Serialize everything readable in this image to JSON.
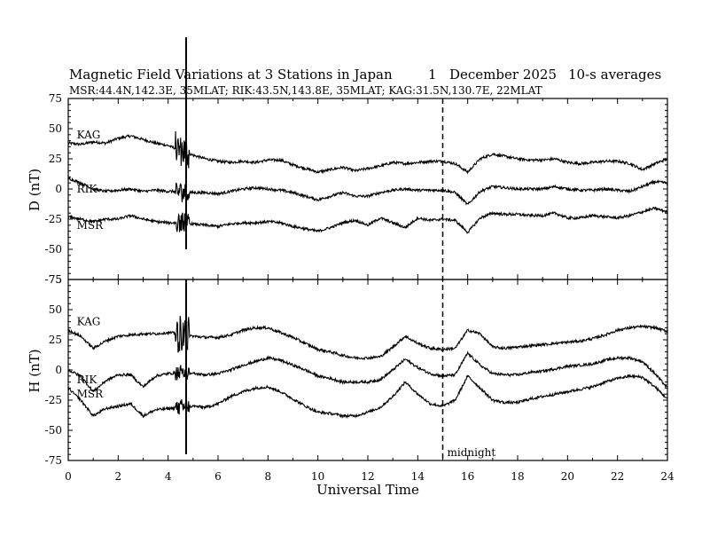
{
  "chart_data": {
    "type": "line",
    "title": {
      "main": "Magnetic Field Variations at 3 Stations in Japan",
      "day": "1",
      "month_year": "December 2025",
      "averaging": "10-s averages"
    },
    "subtitle": "MSR:44.4N,142.3E, 35MLAT;  RIK:43.5N,143.8E, 35MLAT;  KAG:31.5N,130.7E, 22MLAT",
    "xlabel": "Universal Time",
    "xlim": [
      0,
      24
    ],
    "x_ticks": [
      "0",
      "2",
      "4",
      "6",
      "8",
      "10",
      "12",
      "14",
      "16",
      "18",
      "20",
      "22",
      "24"
    ],
    "annotation": {
      "text": "midnight",
      "x": 15
    },
    "panels": [
      {
        "ylabel": "D (nT)",
        "ylim": [
          -75,
          75
        ],
        "y_ticks": [
          "75",
          "50",
          "25",
          "0",
          "-25",
          "-50",
          "-75"
        ],
        "series": [
          {
            "name": "KAG",
            "label_at": [
              0.2,
              45
            ],
            "x": [
              0,
              0.5,
              1,
              1.5,
              2,
              2.5,
              3,
              3.5,
              4,
              4.5,
              5,
              5.5,
              6,
              6.5,
              7,
              7.5,
              8,
              8.5,
              9,
              9.5,
              10,
              10.5,
              11,
              11.5,
              12,
              12.5,
              13,
              13.5,
              14,
              14.5,
              15,
              15.5,
              16,
              16.5,
              17,
              17.5,
              18,
              18.5,
              19,
              19.5,
              20,
              20.5,
              21,
              21.5,
              22,
              22.5,
              23,
              23.5,
              24
            ],
            "values": [
              38,
              37,
              39,
              38,
              42,
              44,
              41,
              38,
              36,
              32,
              28,
              25,
              23,
              22,
              23,
              22,
              24,
              24,
              20,
              17,
              14,
              16,
              18,
              15,
              17,
              19,
              22,
              21,
              22,
              23,
              23,
              21,
              14,
              25,
              29,
              27,
              25,
              24,
              24,
              25,
              22,
              21,
              22,
              23,
              23,
              21,
              16,
              21,
              25
            ]
          },
          {
            "name": "RIK",
            "label_at": [
              0.2,
              0
            ],
            "x": [
              0,
              0.5,
              1,
              1.5,
              2,
              2.5,
              3,
              3.5,
              4,
              4.5,
              5,
              5.5,
              6,
              6.5,
              7,
              7.5,
              8,
              8.5,
              9,
              9.5,
              10,
              10.5,
              11,
              11.5,
              12,
              12.5,
              13,
              13.5,
              14,
              14.5,
              15,
              15.5,
              16,
              16.5,
              17,
              17.5,
              18,
              18.5,
              19,
              19.5,
              20,
              20.5,
              21,
              21.5,
              22,
              22.5,
              23,
              23.5,
              24
            ],
            "values": [
              9,
              5,
              0,
              -2,
              -1,
              0,
              -2,
              -1,
              -2,
              -2,
              -3,
              -3,
              -4,
              -2,
              0,
              1,
              0,
              -1,
              -3,
              -6,
              -9,
              -6,
              -3,
              -6,
              -6,
              -3,
              -1,
              0,
              -1,
              -1,
              -1,
              -3,
              -13,
              -2,
              2,
              1,
              0,
              0,
              0,
              2,
              0,
              -1,
              -1,
              0,
              -1,
              -2,
              2,
              6,
              5
            ]
          },
          {
            "name": "MSR",
            "label_at": [
              0.2,
              -30
            ],
            "x": [
              0,
              0.5,
              1,
              1.5,
              2,
              2.5,
              3,
              3.5,
              4,
              4.5,
              5,
              5.5,
              6,
              6.5,
              7,
              7.5,
              8,
              8.5,
              9,
              9.5,
              10,
              10.5,
              11,
              11.5,
              12,
              12.5,
              13,
              13.5,
              14,
              14.5,
              15,
              15.5,
              16,
              16.5,
              17,
              17.5,
              18,
              18.5,
              19,
              19.5,
              20,
              20.5,
              21,
              21.5,
              22,
              22.5,
              23,
              23.5,
              24
            ],
            "values": [
              -23,
              -25,
              -27,
              -25,
              -25,
              -22,
              -25,
              -27,
              -28,
              -28,
              -29,
              -30,
              -31,
              -29,
              -28,
              -28,
              -27,
              -28,
              -31,
              -33,
              -35,
              -32,
              -28,
              -26,
              -30,
              -24,
              -28,
              -32,
              -24,
              -26,
              -25,
              -26,
              -36,
              -24,
              -20,
              -21,
              -21,
              -22,
              -22,
              -20,
              -24,
              -24,
              -22,
              -23,
              -24,
              -22,
              -19,
              -16,
              -19
            ]
          }
        ]
      },
      {
        "ylabel": "H (nT)",
        "ylim": [
          -75,
          75
        ],
        "y_ticks": [
          "75",
          "50",
          "25",
          "0",
          "-25",
          "-50",
          "-75"
        ],
        "series": [
          {
            "name": "KAG",
            "label_at": [
              0.2,
              40
            ],
            "x": [
              0,
              0.5,
              1,
              1.5,
              2,
              2.5,
              3,
              3.5,
              4,
              4.5,
              5,
              5.5,
              6,
              6.5,
              7,
              7.5,
              8,
              8.5,
              9,
              9.5,
              10,
              10.5,
              11,
              11.5,
              12,
              12.5,
              13,
              13.5,
              14,
              14.5,
              15,
              15.5,
              16,
              16.5,
              17,
              17.5,
              18,
              18.5,
              19,
              19.5,
              20,
              20.5,
              21,
              21.5,
              22,
              22.5,
              23,
              23.5,
              24
            ],
            "values": [
              33,
              28,
              18,
              24,
              28,
              29,
              30,
              30,
              31,
              30,
              28,
              27,
              27,
              29,
              33,
              35,
              35,
              31,
              27,
              22,
              17,
              15,
              12,
              10,
              10,
              11,
              19,
              28,
              22,
              18,
              17,
              18,
              33,
              30,
              19,
              18,
              19,
              20,
              21,
              22,
              23,
              24,
              26,
              29,
              33,
              35,
              36,
              35,
              32
            ]
          },
          {
            "name": "RIK",
            "label_at": [
              0.2,
              -8
            ],
            "x": [
              0,
              0.5,
              1,
              1.5,
              2,
              2.5,
              3,
              3.5,
              4,
              4.5,
              5,
              5.5,
              6,
              6.5,
              7,
              7.5,
              8,
              8.5,
              9,
              9.5,
              10,
              10.5,
              11,
              11.5,
              12,
              12.5,
              13,
              13.5,
              14,
              14.5,
              15,
              15.5,
              16,
              16.5,
              17,
              17.5,
              18,
              18.5,
              19,
              19.5,
              20,
              20.5,
              21,
              21.5,
              22,
              22.5,
              23,
              23.5,
              24
            ],
            "values": [
              0,
              -5,
              -18,
              -9,
              -4,
              -4,
              -14,
              -5,
              -3,
              -2,
              -3,
              -4,
              -3,
              0,
              4,
              7,
              10,
              8,
              4,
              0,
              -5,
              -7,
              -10,
              -10,
              -10,
              -8,
              0,
              9,
              2,
              -3,
              -5,
              -4,
              14,
              4,
              -3,
              -4,
              -4,
              -2,
              -1,
              1,
              3,
              4,
              5,
              8,
              10,
              10,
              7,
              -3,
              -15
            ]
          },
          {
            "name": "MSR",
            "label_at": [
              0.2,
              -20
            ],
            "x": [
              0,
              0.5,
              1,
              1.5,
              2,
              2.5,
              3,
              3.5,
              4,
              4.5,
              5,
              5.5,
              6,
              6.5,
              7,
              7.5,
              8,
              8.5,
              9,
              9.5,
              10,
              10.5,
              11,
              11.5,
              12,
              12.5,
              13,
              13.5,
              14,
              14.5,
              15,
              15.5,
              16,
              16.5,
              17,
              17.5,
              18,
              18.5,
              19,
              19.5,
              20,
              20.5,
              21,
              21.5,
              22,
              22.5,
              23,
              23.5,
              24
            ],
            "values": [
              -15,
              -25,
              -38,
              -32,
              -30,
              -28,
              -38,
              -33,
              -32,
              -31,
              -30,
              -31,
              -28,
              -22,
              -18,
              -15,
              -14,
              -18,
              -24,
              -30,
              -35,
              -36,
              -38,
              -38,
              -35,
              -31,
              -22,
              -10,
              -20,
              -28,
              -30,
              -25,
              -5,
              -15,
              -25,
              -27,
              -27,
              -24,
              -22,
              -20,
              -18,
              -16,
              -14,
              -10,
              -7,
              -5,
              -6,
              -14,
              -24
            ]
          }
        ]
      }
    ],
    "storm_burst": {
      "x_start": 4.3,
      "x_end": 4.85,
      "peak_x": 4.72
    }
  }
}
